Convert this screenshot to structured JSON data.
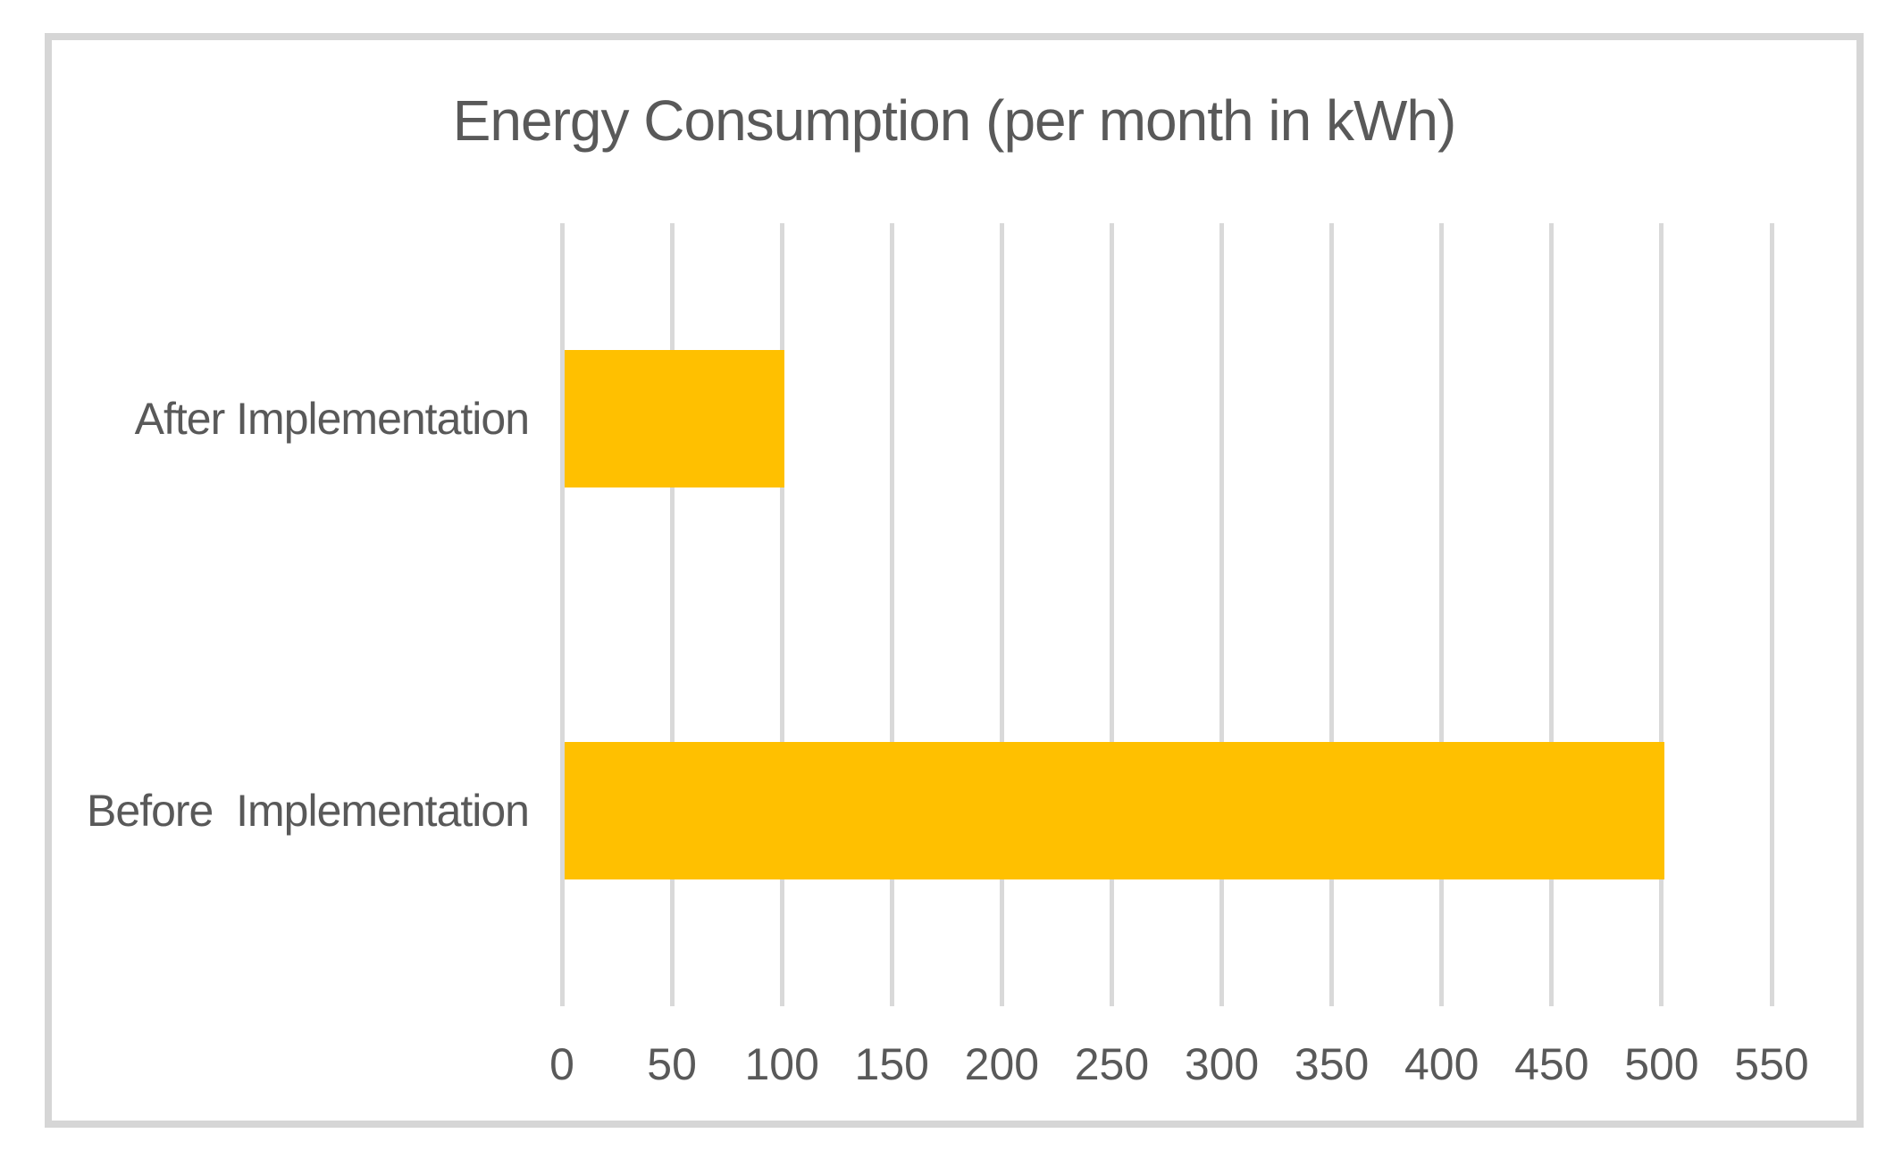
{
  "chart_data": {
    "type": "bar",
    "orientation": "horizontal",
    "title": "Energy Consumption (per month in kWh)",
    "categories": [
      "After Implementation",
      "Before  Implementation"
    ],
    "values": [
      100,
      500
    ],
    "series": [
      {
        "name": "Energy Consumption",
        "values": [
          100,
          500
        ]
      }
    ],
    "xticks": [
      0,
      50,
      100,
      150,
      200,
      250,
      300,
      350,
      400,
      450,
      500,
      550
    ],
    "xlim": [
      0,
      550
    ],
    "xlabel": "",
    "ylabel": "",
    "grid": "vertical-only",
    "legend_position": "none",
    "colors": {
      "bar": "#ffc000",
      "gridline": "#d9d9d9",
      "frame_border": "#d6d6d6",
      "text": "#595959",
      "background": "#ffffff"
    }
  }
}
